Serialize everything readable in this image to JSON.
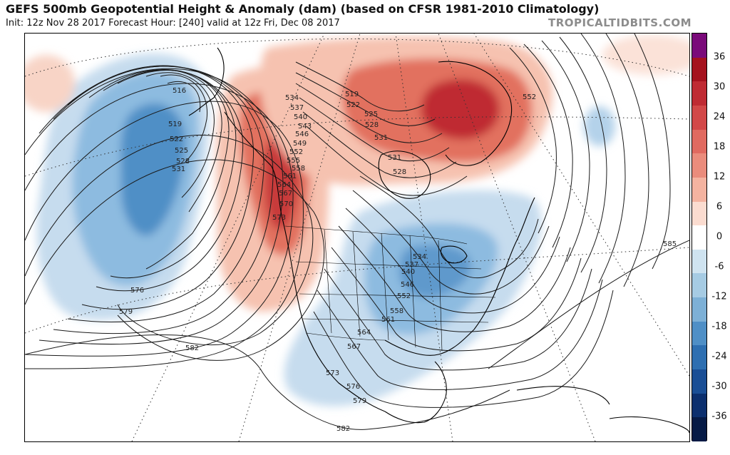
{
  "header": {
    "title": "GEFS 500mb Geopotential Height & Anomaly (dam) (based on CFSR 1981-2010 Climatology)",
    "subtitle": "Init: 12z Nov 28 2017   Forecast Hour: [240]   valid at 12z Fri, Dec 08 2017",
    "brand": "TROPICALTIDBITS.COM"
  },
  "colorbar": {
    "ticks": [
      "36",
      "30",
      "24",
      "18",
      "12",
      "6",
      "0",
      "-6",
      "-12",
      "-18",
      "-24",
      "-30",
      "-36"
    ],
    "colors": [
      "#7a0a7a",
      "#a5121e",
      "#bf2b33",
      "#d24848",
      "#e06a60",
      "#ea8c7c",
      "#f4b3a0",
      "#fbdcd0",
      "#ffffff",
      "#cfe3f0",
      "#a6cbe3",
      "#7db0d6",
      "#4f8fc6",
      "#2e6fb1",
      "#1a4e95",
      "#0c2f6e",
      "#061a45"
    ]
  },
  "contour_labels": [
    "516",
    "519",
    "522",
    "525",
    "528",
    "531",
    "534",
    "537",
    "540",
    "543",
    "546",
    "549",
    "552",
    "555",
    "558",
    "561",
    "564",
    "567",
    "570",
    "573",
    "576",
    "579",
    "582",
    "585"
  ],
  "map_labels": [
    {
      "id": "l516",
      "text": "516"
    },
    {
      "id": "l519",
      "text": "519"
    },
    {
      "id": "l522",
      "text": "522"
    },
    {
      "id": "l525",
      "text": "525"
    },
    {
      "id": "l528",
      "text": "528"
    },
    {
      "id": "l531",
      "text": "531"
    },
    {
      "id": "l534a",
      "text": "534"
    },
    {
      "id": "l537a",
      "text": "537"
    },
    {
      "id": "l540a",
      "text": "540"
    },
    {
      "id": "l543",
      "text": "543"
    },
    {
      "id": "l546a",
      "text": "546"
    },
    {
      "id": "l549",
      "text": "549"
    },
    {
      "id": "l552a",
      "text": "552"
    },
    {
      "id": "l555",
      "text": "555"
    },
    {
      "id": "l558a",
      "text": "558"
    },
    {
      "id": "l561a",
      "text": "561"
    },
    {
      "id": "l564a",
      "text": "564"
    },
    {
      "id": "l567a",
      "text": "567"
    },
    {
      "id": "l570",
      "text": "570"
    },
    {
      "id": "l573a",
      "text": "573"
    },
    {
      "id": "l576a",
      "text": "576"
    },
    {
      "id": "l579a",
      "text": "579"
    },
    {
      "id": "l582a",
      "text": "582"
    },
    {
      "id": "l582b",
      "text": "582"
    },
    {
      "id": "l585",
      "text": "585"
    },
    {
      "id": "l552b",
      "text": "552"
    },
    {
      "id": "l519b",
      "text": "519"
    },
    {
      "id": "l522b",
      "text": "522"
    },
    {
      "id": "l525b",
      "text": "525"
    },
    {
      "id": "l528b",
      "text": "528"
    },
    {
      "id": "l531b",
      "text": "531"
    },
    {
      "id": "l531c",
      "text": "531"
    },
    {
      "id": "l528c",
      "text": "528"
    },
    {
      "id": "l534b",
      "text": "534"
    },
    {
      "id": "l537b",
      "text": "537"
    },
    {
      "id": "l540b",
      "text": "540"
    },
    {
      "id": "l546b",
      "text": "546"
    },
    {
      "id": "l552c",
      "text": "552"
    },
    {
      "id": "l558b",
      "text": "558"
    },
    {
      "id": "l561b",
      "text": "561"
    },
    {
      "id": "l564b",
      "text": "564"
    },
    {
      "id": "l567b",
      "text": "567"
    },
    {
      "id": "l573b",
      "text": "573"
    },
    {
      "id": "l576b",
      "text": "576"
    },
    {
      "id": "l579b",
      "text": "579"
    },
    {
      "id": "l576c",
      "text": "576"
    },
    {
      "id": "l579c",
      "text": "579"
    }
  ]
}
